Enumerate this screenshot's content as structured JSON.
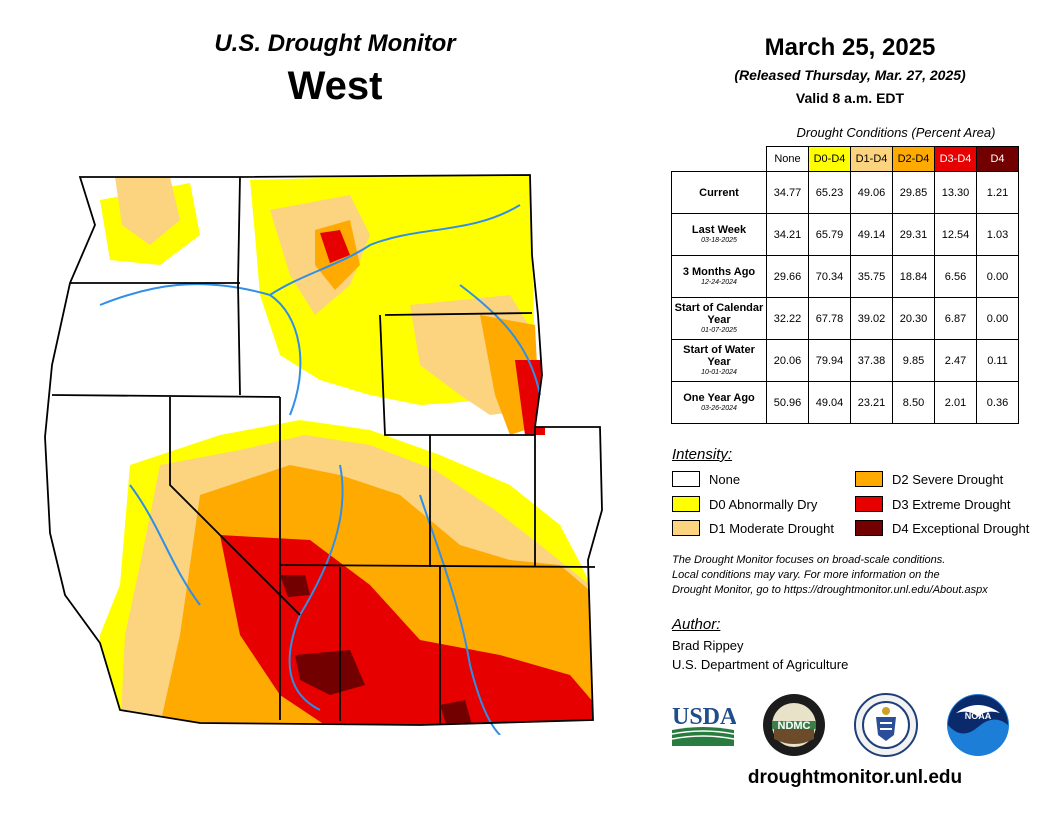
{
  "header": {
    "title": "U.S. Drought Monitor",
    "region": "West",
    "date": "March 25, 2025",
    "released": "(Released Thursday, Mar. 27, 2025)",
    "valid": "Valid 8 a.m. EDT"
  },
  "conditions": {
    "caption": "Drought Conditions (Percent Area)",
    "columns": [
      "None",
      "D0-D4",
      "D1-D4",
      "D2-D4",
      "D3-D4",
      "D4"
    ],
    "column_colors": [
      "#ffffff",
      "#ffff00",
      "#fcd37f",
      "#ffaa00",
      "#e60000",
      "#730000"
    ],
    "rows": [
      {
        "label": "Current",
        "sub": "",
        "values": [
          "34.77",
          "65.23",
          "49.06",
          "29.85",
          "13.30",
          "1.21"
        ]
      },
      {
        "label": "Last Week",
        "sub": "03-18-2025",
        "values": [
          "34.21",
          "65.79",
          "49.14",
          "29.31",
          "12.54",
          "1.03"
        ]
      },
      {
        "label": "3 Months Ago",
        "sub": "12-24-2024",
        "values": [
          "29.66",
          "70.34",
          "35.75",
          "18.84",
          "6.56",
          "0.00"
        ]
      },
      {
        "label": "Start of Calendar Year",
        "sub": "01-07-2025",
        "values": [
          "32.22",
          "67.78",
          "39.02",
          "20.30",
          "6.87",
          "0.00"
        ]
      },
      {
        "label": "Start of Water Year",
        "sub": "10-01-2024",
        "values": [
          "20.06",
          "79.94",
          "37.38",
          "9.85",
          "2.47",
          "0.11"
        ]
      },
      {
        "label": "One Year Ago",
        "sub": "03-26-2024",
        "values": [
          "50.96",
          "49.04",
          "23.21",
          "8.50",
          "2.01",
          "0.36"
        ]
      }
    ]
  },
  "legend": {
    "title": "Intensity:",
    "items": [
      {
        "label": "None",
        "color": "#ffffff"
      },
      {
        "label": "D0 Abnormally Dry",
        "color": "#ffff00"
      },
      {
        "label": "D1 Moderate Drought",
        "color": "#fcd37f"
      },
      {
        "label": "D2 Severe Drought",
        "color": "#ffaa00"
      },
      {
        "label": "D3 Extreme Drought",
        "color": "#e60000"
      },
      {
        "label": "D4 Exceptional Drought",
        "color": "#730000"
      }
    ]
  },
  "note": {
    "line1": "The Drought Monitor focuses on broad-scale conditions.",
    "line2": "Local conditions may vary. For more information on the",
    "line3": "Drought Monitor, go to https://droughtmonitor.unl.edu/About.aspx"
  },
  "author": {
    "title": "Author:",
    "name": "Brad Rippey",
    "org": "U.S. Department of Agriculture"
  },
  "logos": {
    "usda": "USDA",
    "ndmc": "NDMC",
    "noaa": "NOAA"
  },
  "url": "droughtmonitor.unl.edu"
}
